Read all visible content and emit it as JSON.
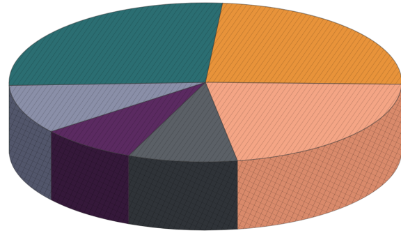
{
  "chart_data": {
    "type": "pie",
    "style": "3d-sketch",
    "title": "",
    "legend": "none",
    "data_labels": "none",
    "slices": [
      {
        "value": 24,
        "color": "#e8933a",
        "side_color": "#b56d24"
      },
      {
        "value": 22,
        "color": "#f4a585",
        "side_color": "#d98a6b"
      },
      {
        "value": 9,
        "color": "#5b6066",
        "side_color": "#2f3338"
      },
      {
        "value": 8,
        "color": "#5b2a61",
        "side_color": "#35183a"
      },
      {
        "value": 10,
        "color": "#8a8fa8",
        "side_color": "#52566b"
      },
      {
        "value": 27,
        "color": "#2b6e72",
        "side_color": "#1b4a4d"
      }
    ]
  }
}
